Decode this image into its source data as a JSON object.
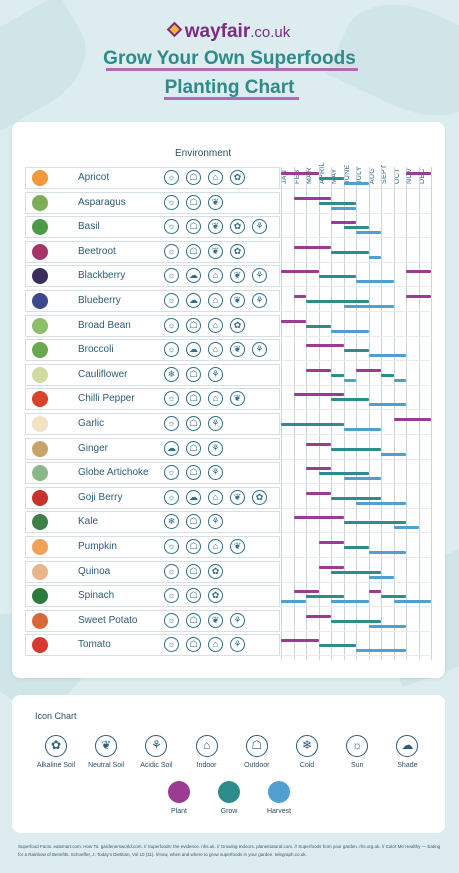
{
  "header": {
    "brand_name": "wayfair",
    "brand_tld": ".co.uk",
    "title_line1": "Grow Your Own Superfoods",
    "title_line2": "Planting Chart"
  },
  "chart": {
    "environment_label": "Environment",
    "months": [
      "JAN",
      "FEB",
      "MAR",
      "APRIL",
      "MAY",
      "JUNE",
      "JULY",
      "AUG",
      "SEPT",
      "OCT",
      "NOV",
      "DEC"
    ],
    "rows": [
      {
        "name": "Apricot",
        "color": "#f29a3b",
        "icons": [
          "sun",
          "outdoor",
          "indoor",
          "alkaline-soil"
        ],
        "plant": [
          [
            0,
            3
          ],
          [
            10,
            12
          ]
        ],
        "grow": [
          [
            3,
            5
          ]
        ],
        "harvest": [
          [
            5,
            7
          ]
        ]
      },
      {
        "name": "Asparagus",
        "color": "#7cae5a",
        "icons": [
          "sun",
          "outdoor",
          "neutral-soil"
        ],
        "plant": [
          [
            1,
            4
          ]
        ],
        "grow": [
          [
            3,
            6
          ]
        ],
        "harvest": [
          [
            4,
            6
          ]
        ]
      },
      {
        "name": "Basil",
        "color": "#4f9a4a",
        "icons": [
          "sun",
          "outdoor",
          "neutral-soil",
          "alkaline-soil",
          "acidic-soil"
        ],
        "plant": [
          [
            4,
            6
          ]
        ],
        "grow": [
          [
            5,
            7
          ]
        ],
        "harvest": [
          [
            6,
            8
          ]
        ]
      },
      {
        "name": "Beetroot",
        "color": "#a8356a",
        "icons": [
          "sun",
          "outdoor",
          "neutral-soil",
          "alkaline-soil"
        ],
        "plant": [
          [
            1,
            4
          ]
        ],
        "grow": [
          [
            4,
            7
          ]
        ],
        "harvest": [
          [
            7,
            8
          ]
        ]
      },
      {
        "name": "Blackberry",
        "color": "#3a2f5a",
        "icons": [
          "sun",
          "shade",
          "indoor",
          "neutral-soil",
          "acidic-soil"
        ],
        "plant": [
          [
            0,
            3
          ],
          [
            10,
            12
          ]
        ],
        "grow": [
          [
            3,
            6
          ]
        ],
        "harvest": [
          [
            6,
            9
          ]
        ]
      },
      {
        "name": "Blueberry",
        "color": "#3c4a8c",
        "icons": [
          "sun",
          "shade",
          "indoor",
          "neutral-soil",
          "acidic-soil"
        ],
        "plant": [
          [
            1,
            2
          ],
          [
            10,
            12
          ]
        ],
        "grow": [
          [
            2,
            7
          ]
        ],
        "harvest": [
          [
            5,
            9
          ]
        ]
      },
      {
        "name": "Broad Bean",
        "color": "#8cbf6a",
        "icons": [
          "sun",
          "outdoor",
          "indoor",
          "alkaline-soil"
        ],
        "plant": [
          [
            0,
            2
          ]
        ],
        "grow": [
          [
            2,
            4
          ]
        ],
        "harvest": [
          [
            4,
            7
          ]
        ]
      },
      {
        "name": "Broccoli",
        "color": "#6aa84f",
        "icons": [
          "sun",
          "shade",
          "indoor",
          "neutral-soil",
          "acidic-soil"
        ],
        "plant": [
          [
            2,
            5
          ]
        ],
        "grow": [
          [
            5,
            7
          ]
        ],
        "harvest": [
          [
            7,
            10
          ]
        ]
      },
      {
        "name": "Cauliflower",
        "color": "#cfd9a0",
        "icons": [
          "cold",
          "outdoor",
          "acidic-soil"
        ],
        "plant": [
          [
            2,
            4
          ],
          [
            6,
            8
          ]
        ],
        "grow": [
          [
            4,
            5
          ],
          [
            8,
            9
          ]
        ],
        "harvest": [
          [
            5,
            6
          ],
          [
            9,
            10
          ]
        ]
      },
      {
        "name": "Chilli Pepper",
        "color": "#d9412b",
        "icons": [
          "sun",
          "outdoor",
          "indoor",
          "neutral-soil"
        ],
        "plant": [
          [
            1,
            5
          ]
        ],
        "grow": [
          [
            4,
            7
          ]
        ],
        "harvest": [
          [
            7,
            10
          ]
        ]
      },
      {
        "name": "Garlic",
        "color": "#efe3c4",
        "icons": [
          "sun",
          "outdoor",
          "acidic-soil"
        ],
        "plant": [
          [
            9,
            12
          ]
        ],
        "grow": [
          [
            0,
            5
          ]
        ],
        "harvest": [
          [
            5,
            8
          ]
        ]
      },
      {
        "name": "Ginger",
        "color": "#c9a46a",
        "icons": [
          "shade",
          "outdoor",
          "acidic-soil"
        ],
        "plant": [
          [
            2,
            4
          ]
        ],
        "grow": [
          [
            4,
            8
          ]
        ],
        "harvest": [
          [
            8,
            10
          ]
        ]
      },
      {
        "name": "Globe Artichoke",
        "color": "#8bb88a",
        "icons": [
          "sun",
          "outdoor",
          "acidic-soil"
        ],
        "plant": [
          [
            2,
            4
          ]
        ],
        "grow": [
          [
            3,
            7
          ]
        ],
        "harvest": [
          [
            5,
            8
          ]
        ]
      },
      {
        "name": "Goji Berry",
        "color": "#c8322d",
        "icons": [
          "sun",
          "shade",
          "indoor",
          "neutral-soil",
          "alkaline-soil"
        ],
        "plant": [
          [
            2,
            4
          ]
        ],
        "grow": [
          [
            4,
            8
          ]
        ],
        "harvest": [
          [
            6,
            10
          ]
        ]
      },
      {
        "name": "Kale",
        "color": "#3f7f4a",
        "icons": [
          "cold",
          "outdoor",
          "acidic-soil"
        ],
        "plant": [
          [
            1,
            5
          ]
        ],
        "grow": [
          [
            5,
            10
          ]
        ],
        "harvest": [
          [
            9,
            11
          ]
        ]
      },
      {
        "name": "Pumpkin",
        "color": "#f0a358",
        "icons": [
          "sun",
          "outdoor",
          "indoor",
          "neutral-soil"
        ],
        "plant": [
          [
            3,
            5
          ]
        ],
        "grow": [
          [
            5,
            7
          ]
        ],
        "harvest": [
          [
            7,
            10
          ]
        ]
      },
      {
        "name": "Quinoa",
        "color": "#e7b48c",
        "icons": [
          "sun",
          "outdoor",
          "alkaline-soil"
        ],
        "plant": [
          [
            3,
            5
          ]
        ],
        "grow": [
          [
            4,
            8
          ]
        ],
        "harvest": [
          [
            7,
            9
          ]
        ]
      },
      {
        "name": "Spinach",
        "color": "#2f7a3e",
        "icons": [
          "sun",
          "outdoor",
          "alkaline-soil"
        ],
        "plant": [
          [
            1,
            3
          ],
          [
            7,
            8
          ]
        ],
        "grow": [
          [
            2,
            5
          ],
          [
            8,
            10
          ]
        ],
        "harvest": [
          [
            0,
            2
          ],
          [
            4,
            7
          ],
          [
            9,
            12
          ]
        ]
      },
      {
        "name": "Sweet Potato",
        "color": "#d7683a",
        "icons": [
          "sun",
          "outdoor",
          "neutral-soil",
          "acidic-soil"
        ],
        "plant": [
          [
            2,
            4
          ]
        ],
        "grow": [
          [
            4,
            8
          ]
        ],
        "harvest": [
          [
            7,
            10
          ]
        ]
      },
      {
        "name": "Tomato",
        "color": "#d8392f",
        "icons": [
          "sun",
          "outdoor",
          "indoor",
          "acidic-soil"
        ],
        "plant": [
          [
            0,
            3
          ]
        ],
        "grow": [
          [
            3,
            6
          ]
        ],
        "harvest": [
          [
            6,
            10
          ]
        ]
      }
    ]
  },
  "legend": {
    "title": "Icon Chart",
    "items": [
      {
        "key": "alkaline-soil",
        "label": "Alkaline Soil"
      },
      {
        "key": "neutral-soil",
        "label": "Neutral Soil"
      },
      {
        "key": "acidic-soil",
        "label": "Acidic Soil"
      },
      {
        "key": "indoor",
        "label": "Indoor"
      },
      {
        "key": "outdoor",
        "label": "Outdoor"
      },
      {
        "key": "cold",
        "label": "Cold"
      },
      {
        "key": "sun",
        "label": "Sun"
      },
      {
        "key": "shade",
        "label": "Shade"
      }
    ],
    "phases": [
      {
        "key": "plant",
        "label": "Plant",
        "color": "#9b3b94"
      },
      {
        "key": "grow",
        "label": "Grow",
        "color": "#2e8c8a"
      },
      {
        "key": "harvest",
        "label": "Harvest",
        "color": "#4f9fd0"
      }
    ]
  },
  "icon_glyphs": {
    "alkaline-soil": "✿",
    "neutral-soil": "❦",
    "acidic-soil": "⚘",
    "indoor": "⌂",
    "outdoor": "☖",
    "cold": "❄",
    "sun": "☼",
    "shade": "☁"
  },
  "sources": "Superfood Facts. eatsmart.com. How To. gardenersworld.com. // Superfoods: the evidence. nhs.uk. // Growing Indoors. planetnatural.com. // Superfoods from your garden. rhs.org.uk. // Color Me Healthy — Eating for a Rainbow of Benefits. Schoeffer, J. Today's Dietitian, Vol 10 (11). //How, when and where to grow superfoods in your garden. telegraph.co.uk."
}
